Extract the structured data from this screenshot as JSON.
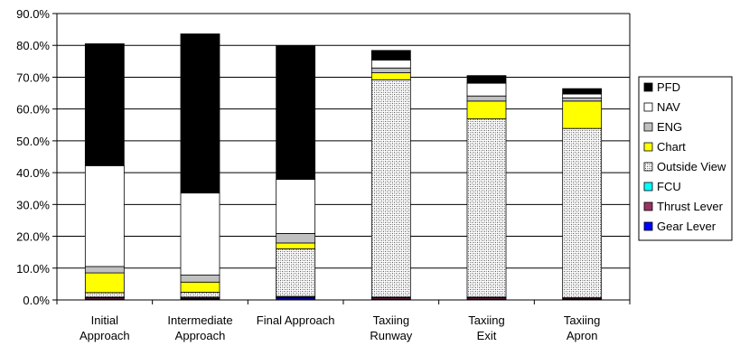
{
  "chart_data": {
    "type": "bar",
    "stacked": true,
    "categories": [
      [
        "Initial",
        "Approach"
      ],
      [
        "Intermediate",
        "Approach"
      ],
      [
        "Final Approach"
      ],
      [
        "Taxiing",
        "Runway"
      ],
      [
        "Taxiing",
        "Exit"
      ],
      [
        "Taxiing",
        "Apron"
      ]
    ],
    "ylim": [
      0,
      90
    ],
    "yticks": [
      "0.0%",
      "10.0%",
      "20.0%",
      "30.0%",
      "40.0%",
      "50.0%",
      "60.0%",
      "70.0%",
      "80.0%",
      "90.0%"
    ],
    "grid": true,
    "legend_position": "right",
    "series": [
      {
        "name": "Gear Lever",
        "color": "#0000ff",
        "pattern": "solid",
        "values": [
          0.3,
          0.3,
          0.6,
          0.3,
          0.3,
          0.2
        ]
      },
      {
        "name": "Thrust Lever",
        "color": "#993366",
        "pattern": "solid",
        "values": [
          0.4,
          0.3,
          0.3,
          0.4,
          0.4,
          0.3
        ]
      },
      {
        "name": "FCU",
        "color": "#00ffff",
        "pattern": "solid",
        "values": [
          0.2,
          0.3,
          0.2,
          0.2,
          0.2,
          0.2
        ]
      },
      {
        "name": "Outside View",
        "color": "#bbbbbb",
        "pattern": "dots",
        "values": [
          1.4,
          1.5,
          15.0,
          68.3,
          56.0,
          53.2
        ]
      },
      {
        "name": "Chart",
        "color": "#ffff00",
        "pattern": "solid",
        "values": [
          6.2,
          3.2,
          1.8,
          2.2,
          5.6,
          8.6
        ]
      },
      {
        "name": "ENG",
        "color": "#c0c0c0",
        "pattern": "solid",
        "values": [
          2.0,
          2.2,
          3.0,
          1.5,
          1.6,
          1.0
        ]
      },
      {
        "name": "NAV",
        "color": "#ffffff",
        "pattern": "solid",
        "values": [
          31.7,
          25.8,
          17.0,
          2.5,
          4.0,
          1.2
        ]
      },
      {
        "name": "PFD",
        "color": "#000000",
        "pattern": "solid",
        "values": [
          38.3,
          50.0,
          42.0,
          3.0,
          2.4,
          1.7
        ]
      }
    ],
    "legend_order": [
      "PFD",
      "NAV",
      "ENG",
      "Chart",
      "Outside View",
      "FCU",
      "Thrust Lever",
      "Gear Lever"
    ]
  }
}
